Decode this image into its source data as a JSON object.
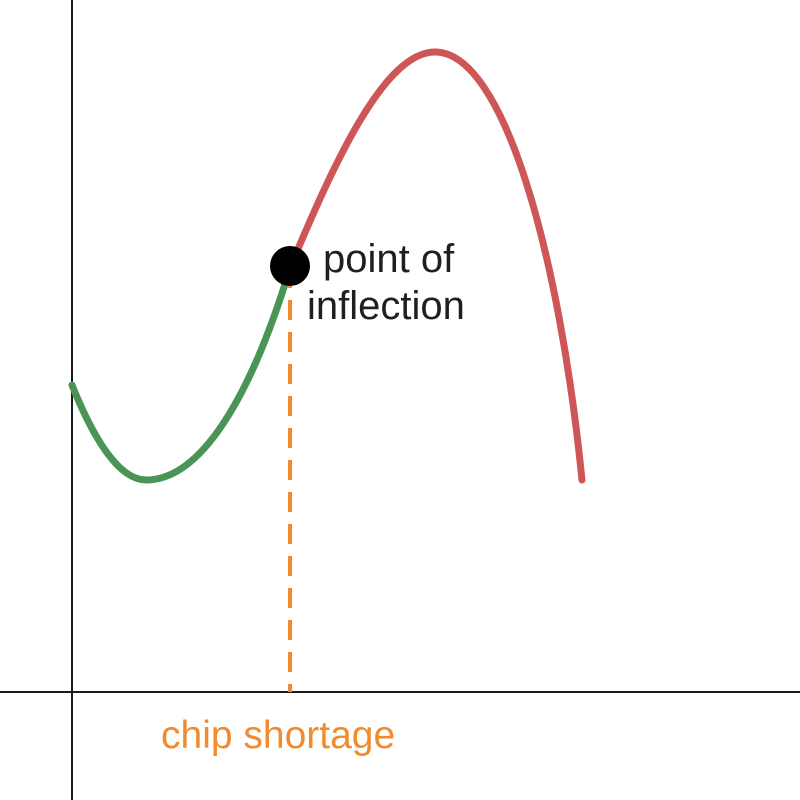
{
  "annotation": {
    "point_label_line1": "point of",
    "point_label_line2": "inflection",
    "event_label": "chip shortage"
  },
  "colors": {
    "axes": "#1a1a1a",
    "curve_before": "#4a9456",
    "curve_after": "#cf5656",
    "event_marker": "#f28a2e",
    "point": "#000000",
    "text": "#1f1f1f"
  }
}
